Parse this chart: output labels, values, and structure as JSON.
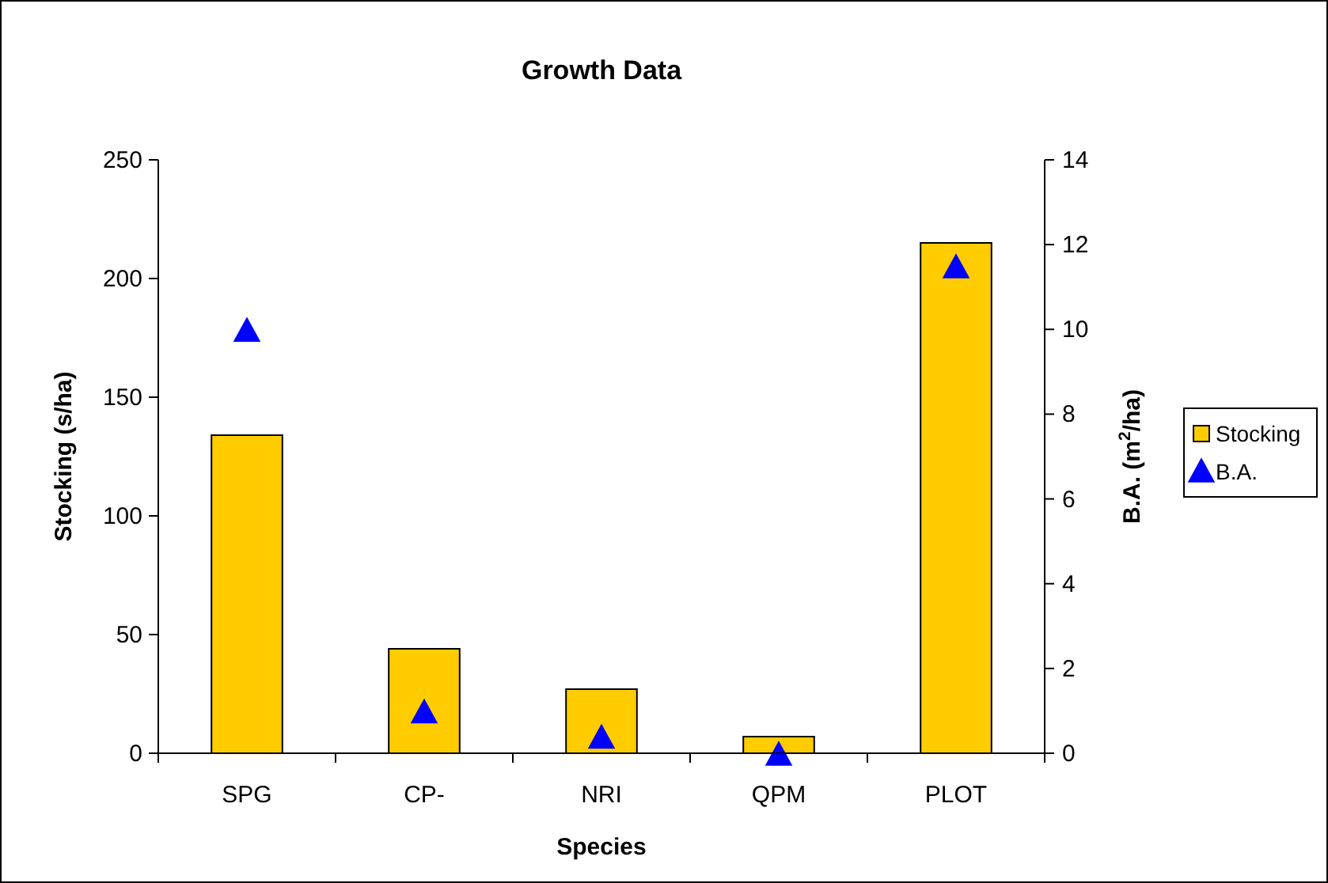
{
  "chart_data": {
    "type": "bar",
    "title": "Growth Data",
    "xlabel": "Species",
    "ylabel": "Stocking (s/ha)",
    "y2label": "B.A. (m$^{2}$/ha)",
    "categories": [
      "SPG",
      "CP-",
      "NRI",
      "QPM",
      "PLOT"
    ],
    "series": [
      {
        "name": "Stocking",
        "color": "#ffcc00",
        "values": [
          134,
          44,
          27,
          7,
          215
        ]
      },
      {
        "name": "B.A.",
        "type": "scatter",
        "axis": "y2",
        "color": "#0000ff",
        "marker": "triangle",
        "values": [
          10,
          1,
          0.4,
          0,
          11.5
        ]
      }
    ],
    "ylim": [
      0,
      250
    ],
    "yticks": [
      0,
      50,
      100,
      150,
      200,
      250
    ],
    "y2lim": [
      0,
      14
    ],
    "y2ticks": [
      0,
      2,
      4,
      6,
      8,
      10,
      12,
      14
    ],
    "grid": false,
    "legend": "right"
  }
}
